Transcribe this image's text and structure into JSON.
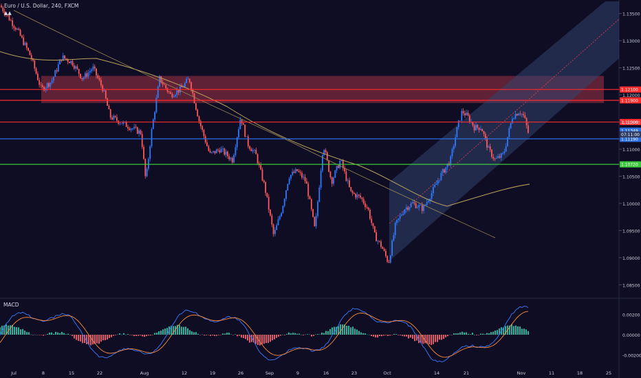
{
  "header": {
    "symbol": "Euro / U.S. Dollar, 240, FXCM"
  },
  "indicator": {
    "name": "MACD"
  },
  "chart_data": {
    "type": "candlestick",
    "title": "Euro / U.S. Dollar, 240, FXCM",
    "ylim": [
      1.0825,
      1.1375
    ],
    "y_ticks": [
      "1.13500",
      "1.13000",
      "1.12500",
      "1.12000",
      "1.11500",
      "1.11000",
      "1.10500",
      "1.10000",
      "1.09500",
      "1.09000",
      "1.08500"
    ],
    "x_ticks": [
      "Jul",
      "8",
      "15",
      "22",
      "Aug",
      "12",
      "19",
      "26",
      "Sep",
      "9",
      "16",
      "23",
      "Oct",
      "14",
      "21",
      "Nov",
      "11",
      "18",
      "25"
    ],
    "price_path": [
      [
        0,
        1.1365
      ],
      [
        25,
        1.132
      ],
      [
        45,
        1.127
      ],
      [
        60,
        1.121
      ],
      [
        75,
        1.1225
      ],
      [
        90,
        1.127
      ],
      [
        105,
        1.126
      ],
      [
        120,
        1.123
      ],
      [
        135,
        1.125
      ],
      [
        150,
        1.121
      ],
      [
        160,
        1.116
      ],
      [
        175,
        1.115
      ],
      [
        190,
        1.114
      ],
      [
        205,
        1.113
      ],
      [
        212,
        1.104
      ],
      [
        220,
        1.113
      ],
      [
        232,
        1.123
      ],
      [
        248,
        1.12
      ],
      [
        262,
        1.121
      ],
      [
        275,
        1.123
      ],
      [
        290,
        1.115
      ],
      [
        305,
        1.109
      ],
      [
        320,
        1.11
      ],
      [
        338,
        1.108
      ],
      [
        350,
        1.116
      ],
      [
        360,
        1.111
      ],
      [
        372,
        1.109
      ],
      [
        385,
        1.103
      ],
      [
        398,
        1.094
      ],
      [
        410,
        1.099
      ],
      [
        420,
        1.105
      ],
      [
        432,
        1.106
      ],
      [
        445,
        1.104
      ],
      [
        458,
        1.095
      ],
      [
        470,
        1.111
      ],
      [
        482,
        1.104
      ],
      [
        495,
        1.108
      ],
      [
        510,
        1.102
      ],
      [
        525,
        1.101
      ],
      [
        535,
        1.099
      ],
      [
        545,
        1.094
      ],
      [
        555,
        1.092
      ],
      [
        565,
        1.089
      ],
      [
        575,
        1.096
      ],
      [
        588,
        1.099
      ],
      [
        600,
        1.1
      ],
      [
        615,
        1.099
      ],
      [
        628,
        1.102
      ],
      [
        640,
        1.105
      ],
      [
        655,
        1.108
      ],
      [
        665,
        1.114
      ],
      [
        672,
        1.117
      ],
      [
        680,
        1.116
      ],
      [
        690,
        1.114
      ],
      [
        700,
        1.114
      ],
      [
        710,
        1.11
      ],
      [
        720,
        1.108
      ],
      [
        732,
        1.109
      ],
      [
        745,
        1.116
      ],
      [
        755,
        1.117
      ],
      [
        762,
        1.116
      ],
      [
        768,
        1.113
      ]
    ],
    "horizontal_levels": [
      {
        "value": 1.121,
        "label": "1.12100",
        "color": "#ff2a2a"
      },
      {
        "value": 1.119,
        "label": "1.11900",
        "color": "#ff2a2a"
      },
      {
        "value": 1.115,
        "label": "1.11500",
        "color": "#ff2a2a"
      },
      {
        "value": 1.1134,
        "label": "1.11349",
        "color": "#2d6fe0"
      },
      {
        "value": 1.1119,
        "label": "1.11190",
        "color": "#2d6fe0"
      },
      {
        "value": 1.1072,
        "label": "1.10720",
        "color": "#3ac93a"
      }
    ],
    "current_price_label": "07:11:00",
    "resistance_zone": [
      1.1185,
      1.1235
    ],
    "indicator": "MACD",
    "macd_ticks": [
      "0.00200",
      "0.00000",
      "-0.00200"
    ],
    "macd_ylim": [
      -0.0034,
      0.0034
    ]
  },
  "colors": {
    "up": "#2f7bff",
    "down": "#ff5a5a",
    "ma": "#b9a35a",
    "macd_line": "#3e7bff",
    "signal": "#ff8c3a",
    "hist_pos": "#2bb3a0",
    "hist_neg": "#e05a6a"
  }
}
